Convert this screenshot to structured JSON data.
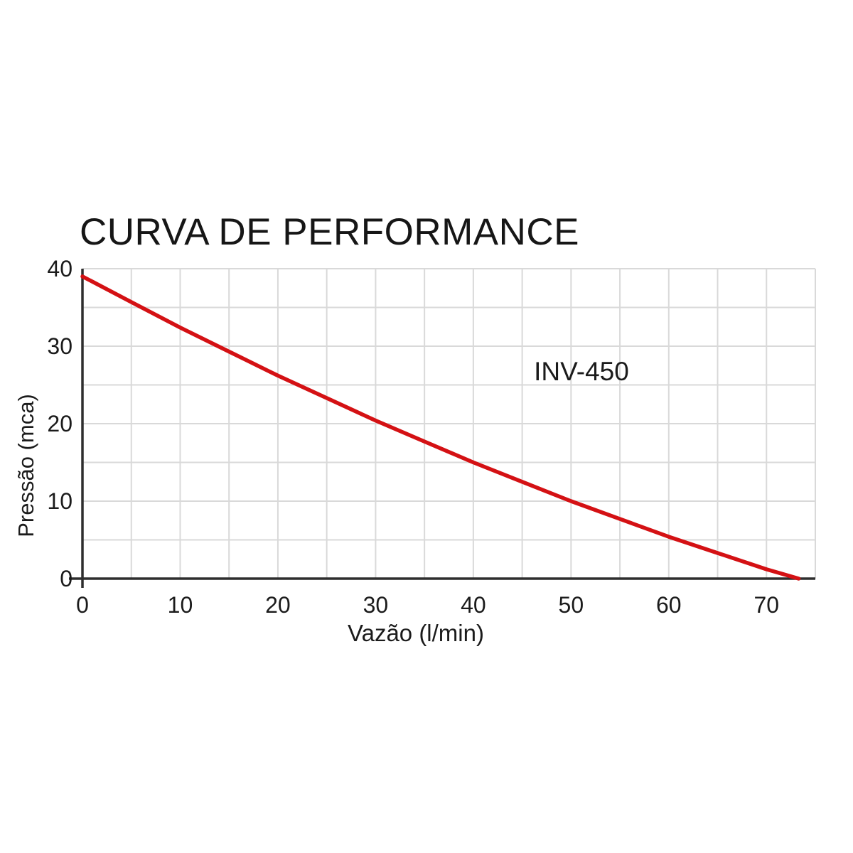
{
  "page": {
    "background_color": "#ffffff"
  },
  "chart_data": {
    "type": "line",
    "title": "CURVA DE PERFORMANCE",
    "xlabel": "Vazão (l/min)",
    "ylabel": "Pressão (mca)",
    "annotation": {
      "text": "INV-450",
      "x": 51,
      "y": 26.7
    },
    "xlim": [
      0,
      75
    ],
    "ylim": [
      0,
      40
    ],
    "x_ticks": [
      0,
      10,
      20,
      30,
      40,
      50,
      60,
      70
    ],
    "y_ticks": [
      0,
      10,
      20,
      30,
      40
    ],
    "grid": true,
    "grid_step_x": 5,
    "grid_step_y": 5,
    "legend_position": "none",
    "series": [
      {
        "name": "INV-450",
        "color": "#d41114",
        "x": [
          0,
          5,
          10,
          15,
          20,
          25,
          30,
          35,
          40,
          45,
          50,
          55,
          60,
          65,
          70,
          73.3
        ],
        "y": [
          39.0,
          35.7,
          32.4,
          29.3,
          26.2,
          23.3,
          20.4,
          17.7,
          15.0,
          12.5,
          10.0,
          7.7,
          5.4,
          3.3,
          1.2,
          0.0
        ]
      }
    ],
    "colors": {
      "grid": "#d9d9d9",
      "axis": "#2e2e2e",
      "text": "#1b1b1b"
    }
  }
}
